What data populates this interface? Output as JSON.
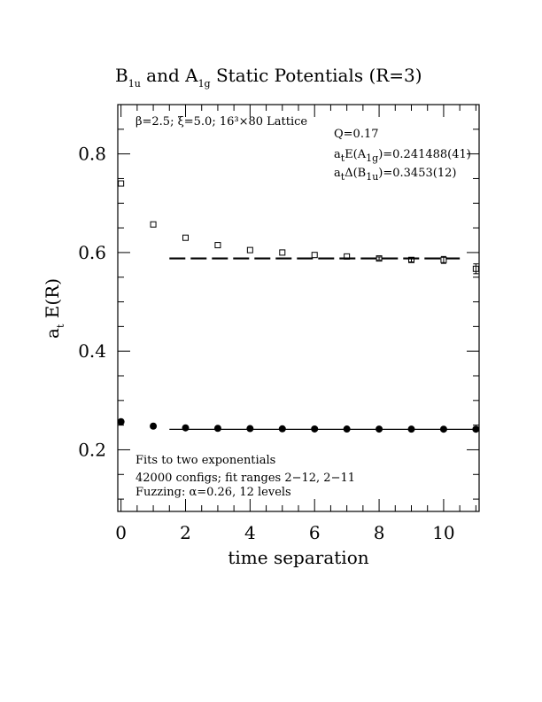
{
  "chart_data": {
    "type": "scatter",
    "title": {
      "part1": "B",
      "sub1": "1u",
      "part2": " and A",
      "sub2": "1g",
      "part3": " Static Potentials (R=3)"
    },
    "xlabel": "time separation",
    "ylabel": {
      "main": "a",
      "sub": "t",
      "rest": " E(R)"
    },
    "xlim": [
      -0.1,
      11.1
    ],
    "ylim": [
      0.075,
      0.9
    ],
    "x_ticks": [
      0,
      2,
      4,
      6,
      8,
      10
    ],
    "y_ticks": [
      0.2,
      0.4,
      0.6,
      0.8
    ],
    "x_tick_labels": [
      "0",
      "2",
      "4",
      "6",
      "8",
      "10"
    ],
    "y_tick_labels": [
      "0.2",
      "0.4",
      "0.6",
      "0.8"
    ],
    "annotations": {
      "params": "β=2.5; ξ=5.0; 16³×80 Lattice",
      "q": "Q=0.17",
      "energy_a1g": {
        "pre": "a",
        "sub1": "t",
        "mid": "E(A",
        "sub2": "1g",
        "post": ")=0.241488(41)"
      },
      "delta_b1u": {
        "pre": "a",
        "sub1": "t",
        "mid": "Δ(B",
        "sub2": "1u",
        "post": ")=0.3453(12)"
      },
      "fit_line1": "Fits to two exponentials",
      "fit_line2": "42000 configs; fit ranges 2−12, 2−11",
      "fit_line3": "Fuzzing: α=0.26, 12 levels"
    },
    "series": [
      {
        "marker": "open-square",
        "x": [
          0,
          1,
          2,
          3,
          4,
          5,
          6,
          7,
          8,
          9,
          10,
          11
        ],
        "y": [
          0.74,
          0.657,
          0.63,
          0.615,
          0.605,
          0.6,
          0.595,
          0.592,
          0.588,
          0.585,
          0.585,
          0.567
        ],
        "err": [
          0.002,
          0.002,
          0.002,
          0.002,
          0.002,
          0.002,
          0.002,
          0.002,
          0.003,
          0.004,
          0.007,
          0.01
        ]
      },
      {
        "marker": "filled-circle",
        "x": [
          0,
          1,
          2,
          3,
          4,
          5,
          6,
          7,
          8,
          9,
          10,
          11
        ],
        "y": [
          0.257,
          0.248,
          0.2445,
          0.2435,
          0.243,
          0.2425,
          0.2422,
          0.2421,
          0.242,
          0.2419,
          0.2418,
          0.2418
        ],
        "err": [
          0,
          0,
          0,
          0,
          0,
          0,
          0,
          0,
          0,
          0,
          0,
          0
        ]
      }
    ],
    "fits": [
      {
        "style": "dashed",
        "x_range": [
          1.5,
          10.5
        ],
        "y": 0.588
      },
      {
        "style": "solid",
        "x_range": [
          1.5,
          11.1
        ],
        "y": 0.2415
      }
    ]
  }
}
